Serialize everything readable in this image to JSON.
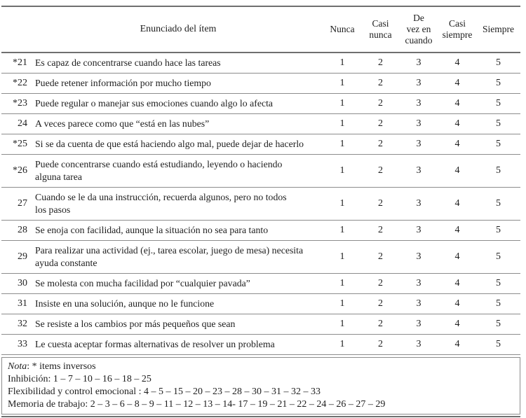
{
  "colors": {
    "text": "#1e1e1e",
    "rule_heavy": "#6f6f6f",
    "rule_light": "#8c8c8c",
    "background": "#ffffff"
  },
  "table": {
    "header": {
      "enunciado_label": "Enunciado del ítem",
      "scale_labels": [
        "Nunca",
        "Casi\nnunca",
        "De\nvez en\ncuando",
        "Casi\nsiempre",
        "Siempre"
      ]
    },
    "rows": [
      {
        "num": "*21",
        "text": "Es capaz de concentrarse cuando hace las tareas",
        "values": [
          1,
          2,
          3,
          4,
          5
        ]
      },
      {
        "num": "*22",
        "text": "Puede retener información por mucho tiempo",
        "values": [
          1,
          2,
          3,
          4,
          5
        ]
      },
      {
        "num": "*23",
        "text": "Puede regular o manejar sus emociones cuando algo lo afecta",
        "values": [
          1,
          2,
          3,
          4,
          5
        ]
      },
      {
        "num": "24",
        "text": "A veces parece como que “está en las nubes”",
        "values": [
          1,
          2,
          3,
          4,
          5
        ]
      },
      {
        "num": "*25",
        "text": "Si se da cuenta de que está haciendo algo mal, puede dejar de hacerlo",
        "values": [
          1,
          2,
          3,
          4,
          5
        ]
      },
      {
        "num": "*26",
        "text": "Puede concentrarse cuando está estudiando, leyendo o haciendo\nalguna tarea",
        "values": [
          1,
          2,
          3,
          4,
          5
        ]
      },
      {
        "num": "27",
        "text": "Cuando se le da una instrucción, recuerda algunos, pero no todos\nlos pasos",
        "values": [
          1,
          2,
          3,
          4,
          5
        ]
      },
      {
        "num": "28",
        "text": "Se enoja con facilidad, aunque la situación no sea para tanto",
        "values": [
          1,
          2,
          3,
          4,
          5
        ]
      },
      {
        "num": "29",
        "text": "Para realizar una actividad (ej., tarea escolar, juego de mesa) necesita\nayuda constante",
        "values": [
          1,
          2,
          3,
          4,
          5
        ]
      },
      {
        "num": "30",
        "text": "Se molesta con mucha facilidad por “cualquier pavada”",
        "values": [
          1,
          2,
          3,
          4,
          5
        ]
      },
      {
        "num": "31",
        "text": "Insiste en una solución, aunque no le funcione",
        "values": [
          1,
          2,
          3,
          4,
          5
        ]
      },
      {
        "num": "32",
        "text": "Se resiste a los cambios por más pequeños que sean",
        "values": [
          1,
          2,
          3,
          4,
          5
        ]
      },
      {
        "num": "33",
        "text": "Le cuesta aceptar formas alternativas de resolver un problema",
        "values": [
          1,
          2,
          3,
          4,
          5
        ]
      }
    ]
  },
  "notes": {
    "nota_label": "Nota",
    "nota_rest": ": * items inversos",
    "lines": [
      "Inhibición: 1 – 7 – 10 – 16 – 18 – 25",
      "Flexibilidad y control emocional : 4 – 5 – 15 – 20 – 23 – 28 – 30 – 31 – 32 – 33",
      "Memoria de trabajo: 2 – 3 – 6 – 8 – 9 – 11 – 12 – 13 – 14- 17 – 19 – 21 – 22 – 24 – 26 – 27 – 29"
    ]
  }
}
